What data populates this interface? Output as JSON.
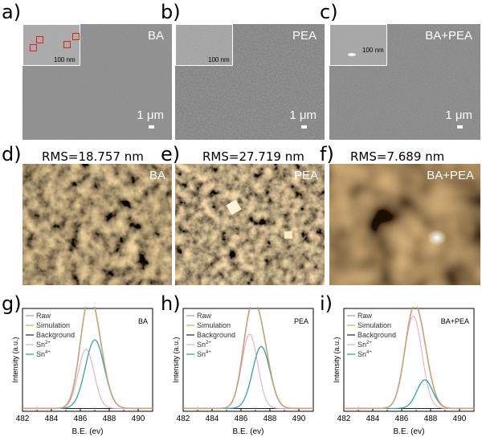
{
  "panel_labels": [
    "a)",
    "b)",
    "c)",
    "d)",
    "e)",
    "f)",
    "g)",
    "h)",
    "i)"
  ],
  "sem": [
    {
      "tag": "BA",
      "inset_scale": "100 nm",
      "scale": "1 μm"
    },
    {
      "tag": "PEA",
      "inset_scale": "100 nm",
      "scale": "1 μm"
    },
    {
      "tag": "BA+PEA",
      "inset_scale": "100 nm",
      "scale": "1 μm"
    }
  ],
  "afm": [
    {
      "tag": "BA",
      "rms": "RMS=18.757 nm"
    },
    {
      "tag": "PEA",
      "rms": "RMS=27.719 nm"
    },
    {
      "tag": "BA+PEA",
      "rms": "RMS=7.689 nm"
    }
  ],
  "colors": {
    "raw": "#9a9ac8",
    "simulation": "#e8a040",
    "background": "#222222",
    "sn2": "#f0a0c8",
    "sn4": "#20a0a0"
  },
  "chart_data": [
    {
      "type": "line",
      "title": "BA",
      "xlabel": "B.E. (ev)",
      "ylabel": "Intensity (a.u.)",
      "xlim": [
        482,
        491
      ],
      "ylim": [
        0,
        1.08
      ],
      "xticks": [
        "482",
        "484",
        "486",
        "488",
        "490"
      ],
      "legend": [
        "Raw",
        "Simulation",
        "Background",
        "Sn2+",
        "Sn4+"
      ],
      "legend_display": [
        {
          "base": "Raw",
          "sup": ""
        },
        {
          "base": "Simulation",
          "sup": ""
        },
        {
          "base": "Background",
          "sup": ""
        },
        {
          "base": "Sn",
          "sup": "2+"
        },
        {
          "base": "Sn",
          "sup": "4+"
        }
      ],
      "peaks": {
        "sn2": {
          "center": 486.4,
          "amplitude": 0.62,
          "width": 0.55
        },
        "sn4": {
          "center": 487.0,
          "amplitude": 0.72,
          "width": 0.65
        }
      },
      "background": 0.03
    },
    {
      "type": "line",
      "title": "PEA",
      "xlabel": "B.E. (ev)",
      "ylabel": "Intensity (a.u.)",
      "xlim": [
        482,
        491
      ],
      "ylim": [
        0,
        1.08
      ],
      "xticks": [
        "482",
        "484",
        "486",
        "488",
        "490"
      ],
      "legend": [
        "Raw",
        "Simulation",
        "Background",
        "Sn2+",
        "Sn4+"
      ],
      "legend_display": [
        {
          "base": "Raw",
          "sup": ""
        },
        {
          "base": "Simulation",
          "sup": ""
        },
        {
          "base": "Background",
          "sup": ""
        },
        {
          "base": "Sn",
          "sup": "2+"
        },
        {
          "base": "Sn",
          "sup": "4+"
        }
      ],
      "peaks": {
        "sn2": {
          "center": 486.6,
          "amplitude": 0.78,
          "width": 0.55
        },
        "sn4": {
          "center": 487.4,
          "amplitude": 0.65,
          "width": 0.6
        }
      },
      "background": 0.03
    },
    {
      "type": "line",
      "title": "BA+PEA",
      "xlabel": "B.E. (ev)",
      "ylabel": "Intensity (a.u.)",
      "xlim": [
        482,
        491
      ],
      "ylim": [
        0,
        1.08
      ],
      "xticks": [
        "482",
        "484",
        "486",
        "488",
        "490"
      ],
      "legend": [
        "Raw",
        "Simulation",
        "Background",
        "Sn2+",
        "Sn4+"
      ],
      "legend_display": [
        {
          "base": "Raw",
          "sup": ""
        },
        {
          "base": "Simulation",
          "sup": ""
        },
        {
          "base": "Background",
          "sup": ""
        },
        {
          "base": "Sn",
          "sup": "2+"
        },
        {
          "base": "Sn",
          "sup": "4+"
        }
      ],
      "peaks": {
        "sn2": {
          "center": 486.8,
          "amplitude": 0.97,
          "width": 0.6
        },
        "sn4": {
          "center": 487.6,
          "amplitude": 0.3,
          "width": 0.55
        }
      },
      "background": 0.03
    }
  ]
}
